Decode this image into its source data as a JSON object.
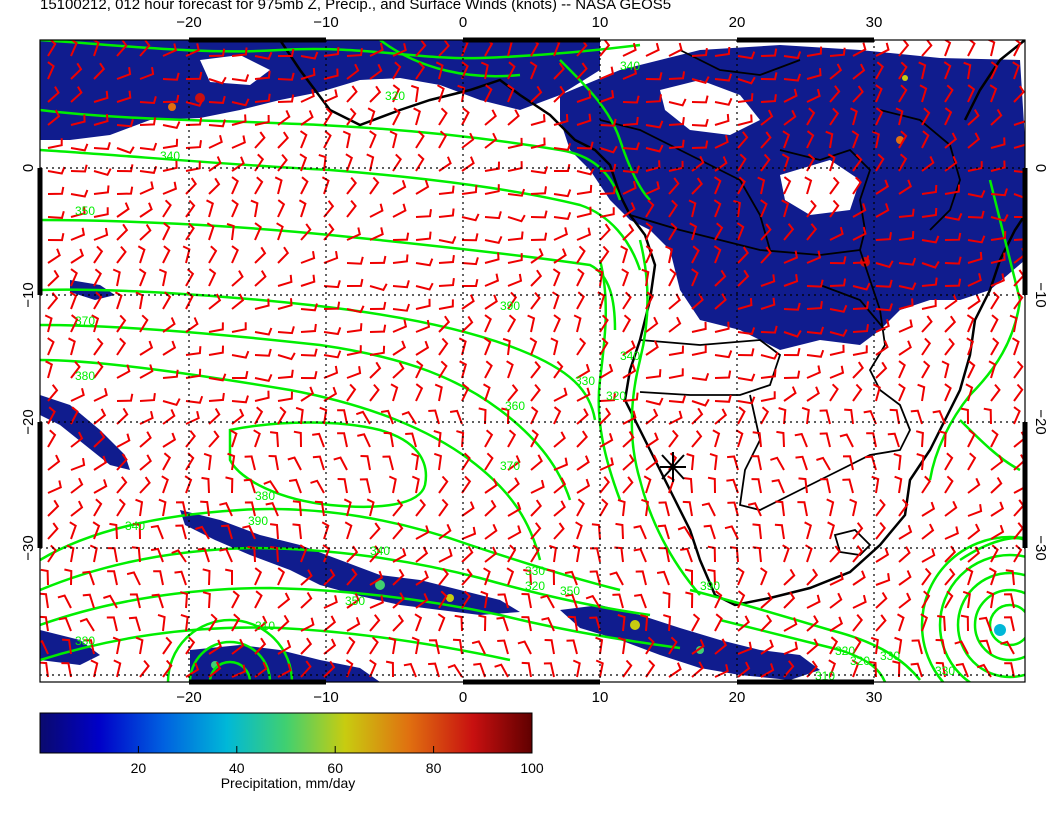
{
  "title": "15100212, 012 hour forecast for 975mb Z, Precip., and Surface Winds (knots) -- NASA GEOS5",
  "lon_labels": [
    "−20",
    "−10",
    "0",
    "10",
    "20",
    "30"
  ],
  "lat_labels": [
    "0",
    "−10",
    "−20",
    "−30"
  ],
  "contour_labels": [
    "320",
    "340",
    "350",
    "370",
    "380",
    "390",
    "360",
    "370",
    "380",
    "390",
    "340",
    "330",
    "320",
    "340",
    "330",
    "320",
    "350",
    "340",
    "350",
    "310",
    "380",
    "390",
    "340",
    "330",
    "330",
    "320",
    "320",
    "310"
  ],
  "colorbar": {
    "ticks": [
      "20",
      "40",
      "60",
      "80",
      "100"
    ],
    "label": "Precipitation, mm/day",
    "min": 0,
    "max": 100
  },
  "colors": {
    "contour": "#00ee00",
    "barb": "#ee0000",
    "precip": "#101c8e",
    "border": "#000000"
  },
  "icons": {
    "marker": "star-marker-icon"
  }
}
